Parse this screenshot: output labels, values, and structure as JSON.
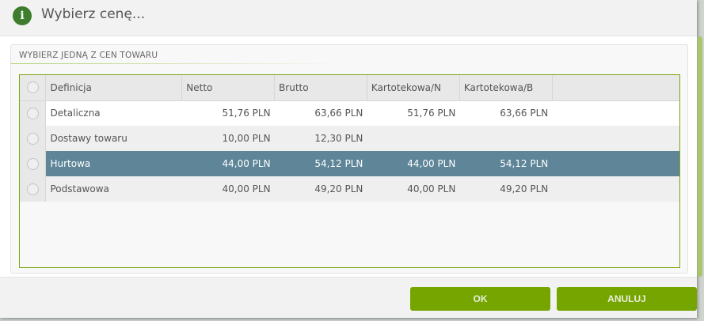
{
  "dialog": {
    "title": "Wybierz cenę...",
    "icon": "info-icon"
  },
  "panel": {
    "title": "WYBIERZ JEDNĄ Z CEN TOWARU"
  },
  "grid": {
    "columns": [
      "Definicja",
      "Netto",
      "Brutto",
      "Kartotekowa/N",
      "Kartotekowa/B"
    ],
    "rows": [
      {
        "definicja": "Detaliczna",
        "netto": "51,76 PLN",
        "brutto": "63,66 PLN",
        "kn": "51,76 PLN",
        "kb": "63,66 PLN"
      },
      {
        "definicja": "Dostawy towaru",
        "netto": "10,00 PLN",
        "brutto": "12,30 PLN",
        "kn": "",
        "kb": ""
      },
      {
        "definicja": "Hurtowa",
        "netto": "44,00 PLN",
        "brutto": "54,12 PLN",
        "kn": "44,00 PLN",
        "kb": "54,12 PLN"
      },
      {
        "definicja": "Podstawowa",
        "netto": "40,00 PLN",
        "brutto": "49,20 PLN",
        "kn": "40,00 PLN",
        "kb": "49,20 PLN"
      }
    ],
    "selected_row": "Hurtowa"
  },
  "footer": {
    "ok": "OK",
    "cancel": "ANULUJ"
  },
  "colors": {
    "accent": "#76a500",
    "selected": "#5e8598",
    "icon": "#3f7d2e"
  }
}
